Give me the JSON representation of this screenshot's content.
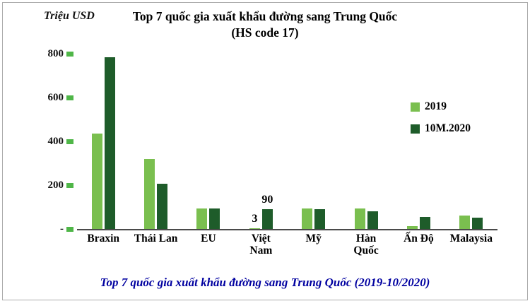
{
  "chart_data": {
    "type": "bar",
    "title": "Top 7 quốc gia xuất khẩu đường sang Trung Quốc",
    "subtitle": "(HS code 17)",
    "ylabel": "Triệu USD",
    "categories": [
      "Braxin",
      "Thái Lan",
      "EU",
      "Việt\nNam",
      "Mỹ",
      "Hàn\nQuốc",
      "Ấn Độ",
      "Malaysia"
    ],
    "series": [
      {
        "name": "2019",
        "color": "#7ABF4F",
        "values": [
          435,
          320,
          95,
          3,
          95,
          95,
          13,
          60
        ]
      },
      {
        "name": "10M.2020",
        "color": "#1E5C2A",
        "values": [
          785,
          205,
          95,
          90,
          90,
          80,
          55,
          52
        ]
      }
    ],
    "ylim": [
      0,
      800
    ],
    "yticks": [
      {
        "label": "-",
        "value": 0
      },
      {
        "label": "200",
        "value": 200
      },
      {
        "label": "400",
        "value": 400
      },
      {
        "label": "600",
        "value": 600
      },
      {
        "label": "800",
        "value": 800
      }
    ],
    "grid": false,
    "legend_position": "right",
    "tick_color": "#4FB648",
    "annotations": [
      {
        "category_index": 3,
        "series_index": 0,
        "text": "3"
      },
      {
        "category_index": 3,
        "series_index": 1,
        "text": "90"
      }
    ],
    "caption": "Top 7 quốc gia xuất khẩu đường sang Trung Quốc (2019-10/2020)"
  }
}
